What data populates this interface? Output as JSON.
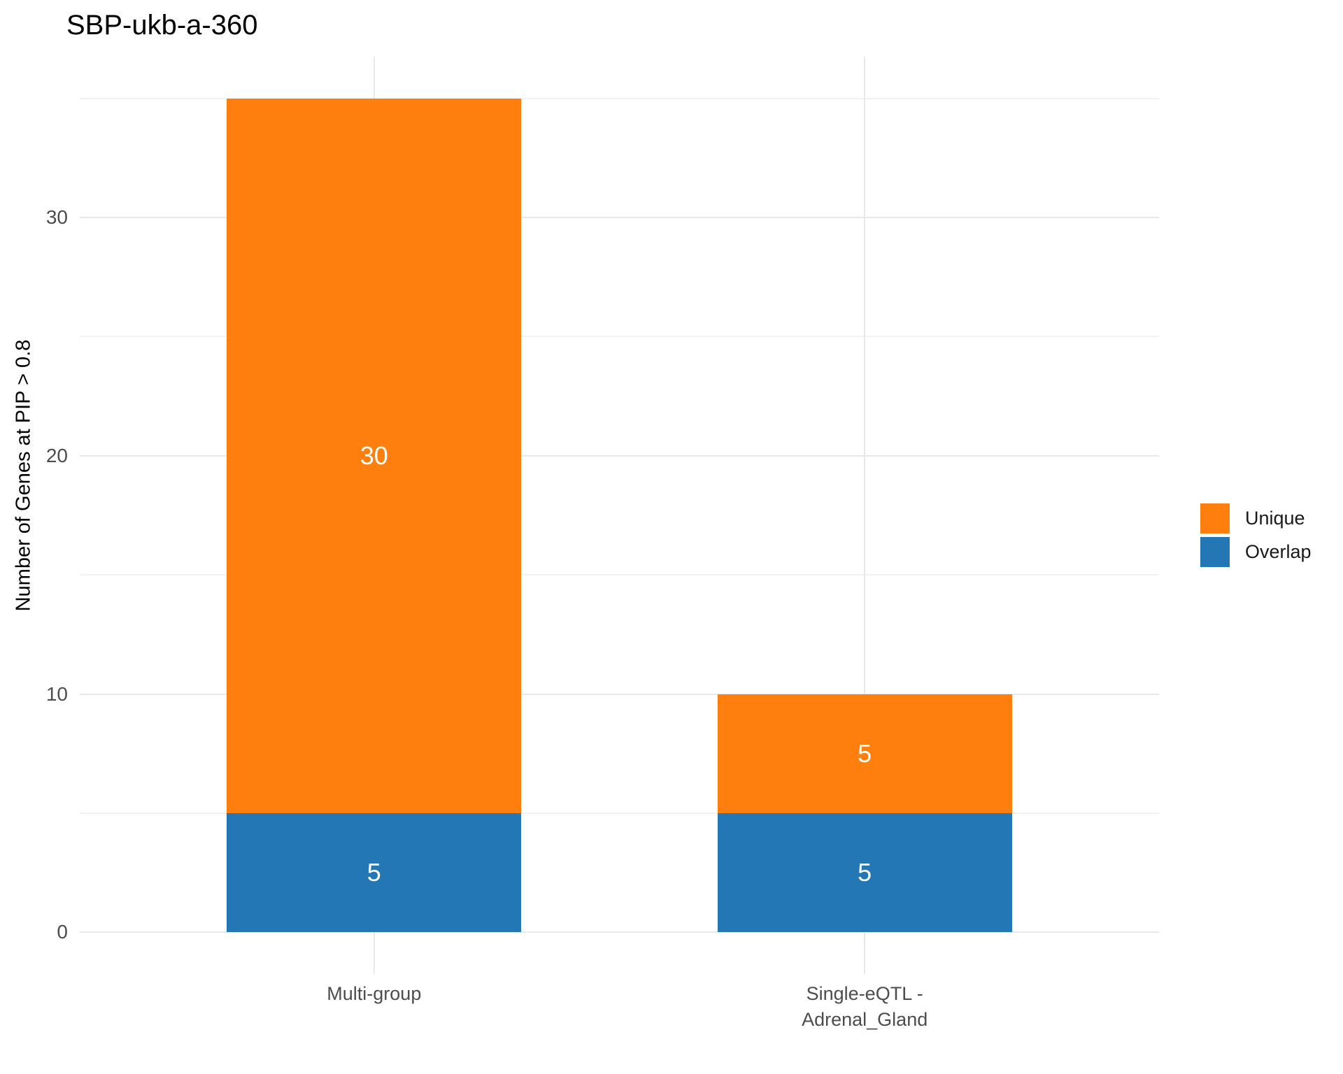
{
  "title": "SBP-ukb-a-360",
  "y_axis_title": "Number of Genes at PIP > 0.8",
  "colors": {
    "unique": "#FF7F0E",
    "overlap": "#2377B4",
    "grid_major": "#E8E8E8",
    "grid_minor": "#F2F2F2",
    "axis_text": "#4D4D4D",
    "title_text": "#000000",
    "bar_label_text": "#FFFFFF",
    "background": "#FFFFFF"
  },
  "legend": {
    "items": [
      {
        "label": "Unique",
        "color": "#FF7F0E"
      },
      {
        "label": "Overlap",
        "color": "#2377B4"
      }
    ]
  },
  "chart_data": {
    "type": "bar",
    "stacked": true,
    "title": "SBP-ukb-a-360",
    "categories": [
      "Multi-group",
      "Single-eQTL -\nAdrenal_Gland"
    ],
    "series": [
      {
        "name": "Overlap",
        "values": [
          5,
          5
        ],
        "color": "#2377B4"
      },
      {
        "name": "Unique",
        "values": [
          30,
          5
        ],
        "color": "#FF7F0E"
      }
    ],
    "totals": [
      35,
      10
    ],
    "show_segment_value_labels": true,
    "xlabel": "",
    "ylabel": "Number of Genes at PIP > 0.8",
    "yticks": [
      0,
      10,
      20,
      30
    ],
    "yticks_minor": [
      5,
      15,
      25,
      35
    ],
    "ylim": [
      -1.75,
      36.75
    ],
    "grid": true,
    "legend_position": "right"
  }
}
